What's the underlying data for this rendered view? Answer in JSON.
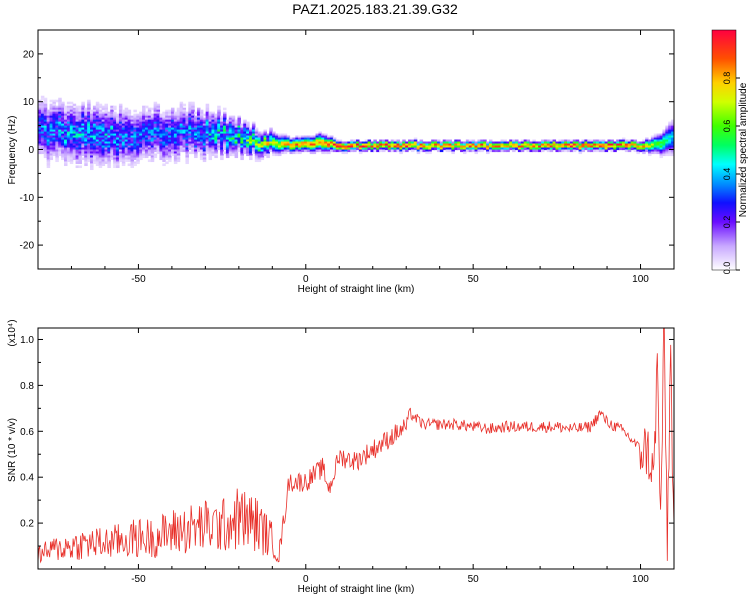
{
  "title": "PAZ1.2025.183.21.39.G32",
  "chart_data": [
    {
      "type": "heatmap",
      "title": "PAZ1.2025.183.21.39.G32",
      "xlabel": "Height of straight line (km)",
      "ylabel": "Frequency (Hz)",
      "xlim": [
        -80,
        110
      ],
      "ylim": [
        -25,
        25
      ],
      "x_ticks": [
        -50,
        0,
        50,
        100
      ],
      "y_ticks": [
        -20,
        -10,
        0,
        10,
        20
      ],
      "colorbar": {
        "label": "Normalized spectral amplitude",
        "range": [
          0,
          1
        ],
        "ticks": [
          "0.0",
          "0.2",
          "0.4",
          "0.6",
          "0.8"
        ]
      },
      "ridge": {
        "x": [
          -80,
          -70,
          -60,
          -50,
          -40,
          -30,
          -20,
          -12,
          -5,
          0,
          5,
          10,
          20,
          30,
          40,
          50,
          60,
          70,
          80,
          90,
          100,
          105,
          110
        ],
        "y": [
          4.0,
          3.5,
          3.0,
          3.0,
          3.5,
          3.5,
          2.5,
          1.5,
          1.0,
          1.0,
          1.5,
          0.8,
          0.8,
          0.8,
          0.8,
          0.8,
          0.8,
          0.8,
          0.8,
          0.8,
          0.8,
          1.0,
          2.5
        ],
        "amplitude": [
          0.3,
          0.35,
          0.35,
          0.3,
          0.3,
          0.35,
          0.45,
          0.6,
          0.8,
          0.85,
          0.8,
          0.95,
          0.9,
          0.9,
          0.85,
          0.85,
          0.85,
          0.85,
          0.9,
          0.9,
          0.85,
          0.6,
          0.4
        ],
        "spread_hz": [
          5.0,
          5.0,
          5.0,
          4.5,
          4.5,
          4.0,
          3.0,
          2.0,
          1.2,
          1.2,
          1.5,
          0.8,
          0.8,
          0.8,
          0.8,
          0.8,
          0.8,
          0.8,
          0.8,
          0.8,
          0.8,
          1.5,
          3.0
        ]
      }
    },
    {
      "type": "line",
      "xlabel": "Height of straight line (km)",
      "ylabel": "SNR (10 * v/v)",
      "y_multiplier": "(x10⁴)",
      "xlim": [
        -80,
        110
      ],
      "ylim": [
        0,
        1.05
      ],
      "x_ticks": [
        -50,
        0,
        50,
        100
      ],
      "y_ticks": [
        "0.2",
        "0.4",
        "0.6",
        "0.8",
        "1.0"
      ],
      "series": [
        {
          "color": "#e8302a",
          "x": [
            -80,
            -75,
            -70,
            -65,
            -60,
            -55,
            -50,
            -45,
            -40,
            -35,
            -30,
            -25,
            -20,
            -15,
            -10,
            -8,
            -5,
            0,
            5,
            7,
            10,
            15,
            20,
            25,
            30,
            31,
            35,
            40,
            45,
            50,
            55,
            60,
            65,
            70,
            75,
            80,
            85,
            88,
            90,
            95,
            100,
            102,
            104,
            105,
            106,
            107,
            108,
            109,
            110
          ],
          "y": [
            0.05,
            0.07,
            0.08,
            0.09,
            0.09,
            0.1,
            0.11,
            0.11,
            0.13,
            0.14,
            0.15,
            0.15,
            0.18,
            0.16,
            0.1,
            0.06,
            0.38,
            0.38,
            0.44,
            0.35,
            0.49,
            0.47,
            0.52,
            0.57,
            0.62,
            0.68,
            0.63,
            0.63,
            0.63,
            0.62,
            0.61,
            0.62,
            0.62,
            0.62,
            0.62,
            0.61,
            0.62,
            0.68,
            0.64,
            0.6,
            0.52,
            0.52,
            0.4,
            0.9,
            0.2,
            1.04,
            0.12,
            0.95,
            0.1
          ]
        }
      ]
    }
  ]
}
